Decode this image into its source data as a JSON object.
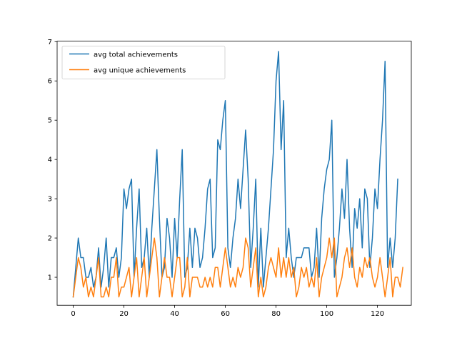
{
  "chart_data": {
    "type": "line",
    "title": "",
    "xlabel": "",
    "ylabel": "",
    "xlim": [
      -6.35,
      133.35
    ],
    "ylim": [
      0.2875,
      7.0125
    ],
    "xticks": [
      0,
      20,
      40,
      60,
      80,
      100,
      120
    ],
    "yticks": [
      1,
      2,
      3,
      4,
      5,
      6,
      7
    ],
    "grid": false,
    "legend_position": "upper-left",
    "series": [
      {
        "name": "avg total achievements",
        "color": "#1f77b4",
        "values": [
          0.5,
          1.25,
          2.0,
          1.5,
          1.5,
          1.0,
          1.0,
          1.25,
          0.75,
          1.0,
          1.75,
          0.75,
          1.25,
          2.0,
          0.75,
          1.5,
          1.5,
          1.75,
          1.0,
          1.5,
          3.25,
          2.75,
          3.25,
          3.5,
          1.0,
          2.25,
          3.25,
          1.25,
          1.5,
          2.25,
          1.0,
          2.25,
          3.25,
          4.25,
          2.5,
          1.0,
          1.25,
          2.5,
          2.0,
          1.0,
          2.5,
          1.5,
          3.0,
          4.25,
          1.0,
          1.25,
          2.25,
          1.25,
          2.25,
          2.0,
          1.25,
          1.5,
          2.25,
          3.25,
          3.5,
          1.5,
          1.75,
          4.5,
          4.25,
          5.0,
          5.5,
          1.75,
          1.25,
          2.0,
          2.5,
          3.5,
          2.75,
          3.75,
          4.75,
          3.5,
          1.25,
          2.25,
          3.5,
          0.75,
          2.25,
          0.75,
          1.5,
          2.25,
          3.25,
          4.25,
          6.0,
          6.75,
          4.25,
          5.5,
          1.5,
          2.25,
          1.5,
          1.0,
          1.5,
          1.5,
          1.5,
          1.75,
          1.75,
          1.75,
          1.0,
          1.25,
          2.25,
          1.0,
          2.5,
          3.25,
          3.75,
          4.0,
          5.0,
          1.0,
          1.5,
          2.25,
          3.25,
          2.5,
          4.0,
          2.25,
          1.25,
          2.75,
          2.25,
          3.0,
          1.75,
          3.25,
          3.0,
          1.25,
          2.0,
          3.25,
          2.75,
          4.0,
          5.0,
          6.5,
          1.25,
          2.0,
          1.25,
          2.0,
          3.5
        ]
      },
      {
        "name": "avg unique achievements",
        "color": "#ff7f0e",
        "values": [
          0.5,
          1.0,
          1.5,
          1.25,
          0.75,
          1.0,
          0.5,
          0.75,
          0.5,
          1.0,
          1.5,
          0.5,
          0.5,
          0.75,
          0.5,
          1.0,
          1.0,
          1.5,
          0.5,
          0.75,
          0.75,
          1.0,
          1.25,
          0.5,
          1.0,
          1.5,
          0.5,
          1.0,
          1.5,
          0.5,
          1.0,
          1.5,
          2.0,
          1.5,
          0.5,
          1.0,
          1.5,
          1.0,
          1.0,
          0.5,
          1.0,
          1.5,
          1.5,
          0.5,
          0.75,
          1.5,
          0.5,
          1.0,
          1.0,
          1.0,
          0.75,
          0.75,
          1.0,
          0.75,
          1.0,
          0.75,
          1.25,
          1.25,
          0.75,
          1.25,
          1.75,
          1.25,
          0.75,
          1.0,
          0.75,
          1.25,
          1.0,
          1.25,
          2.0,
          1.75,
          0.75,
          1.25,
          1.75,
          0.5,
          1.0,
          0.5,
          0.75,
          1.25,
          1.5,
          1.25,
          1.0,
          1.75,
          1.0,
          1.5,
          1.0,
          1.5,
          1.0,
          1.25,
          0.5,
          0.75,
          1.25,
          1.0,
          1.25,
          0.75,
          1.0,
          0.75,
          1.5,
          0.5,
          1.0,
          1.25,
          1.5,
          2.0,
          1.5,
          2.0,
          0.5,
          0.75,
          1.0,
          1.5,
          1.75,
          1.25,
          1.75,
          1.0,
          0.75,
          1.25,
          1.0,
          1.5,
          1.25,
          1.5,
          1.0,
          0.75,
          1.0,
          1.5,
          1.0,
          0.5,
          1.0,
          1.5,
          0.5,
          1.0,
          1.0,
          0.75,
          1.25
        ]
      }
    ]
  }
}
